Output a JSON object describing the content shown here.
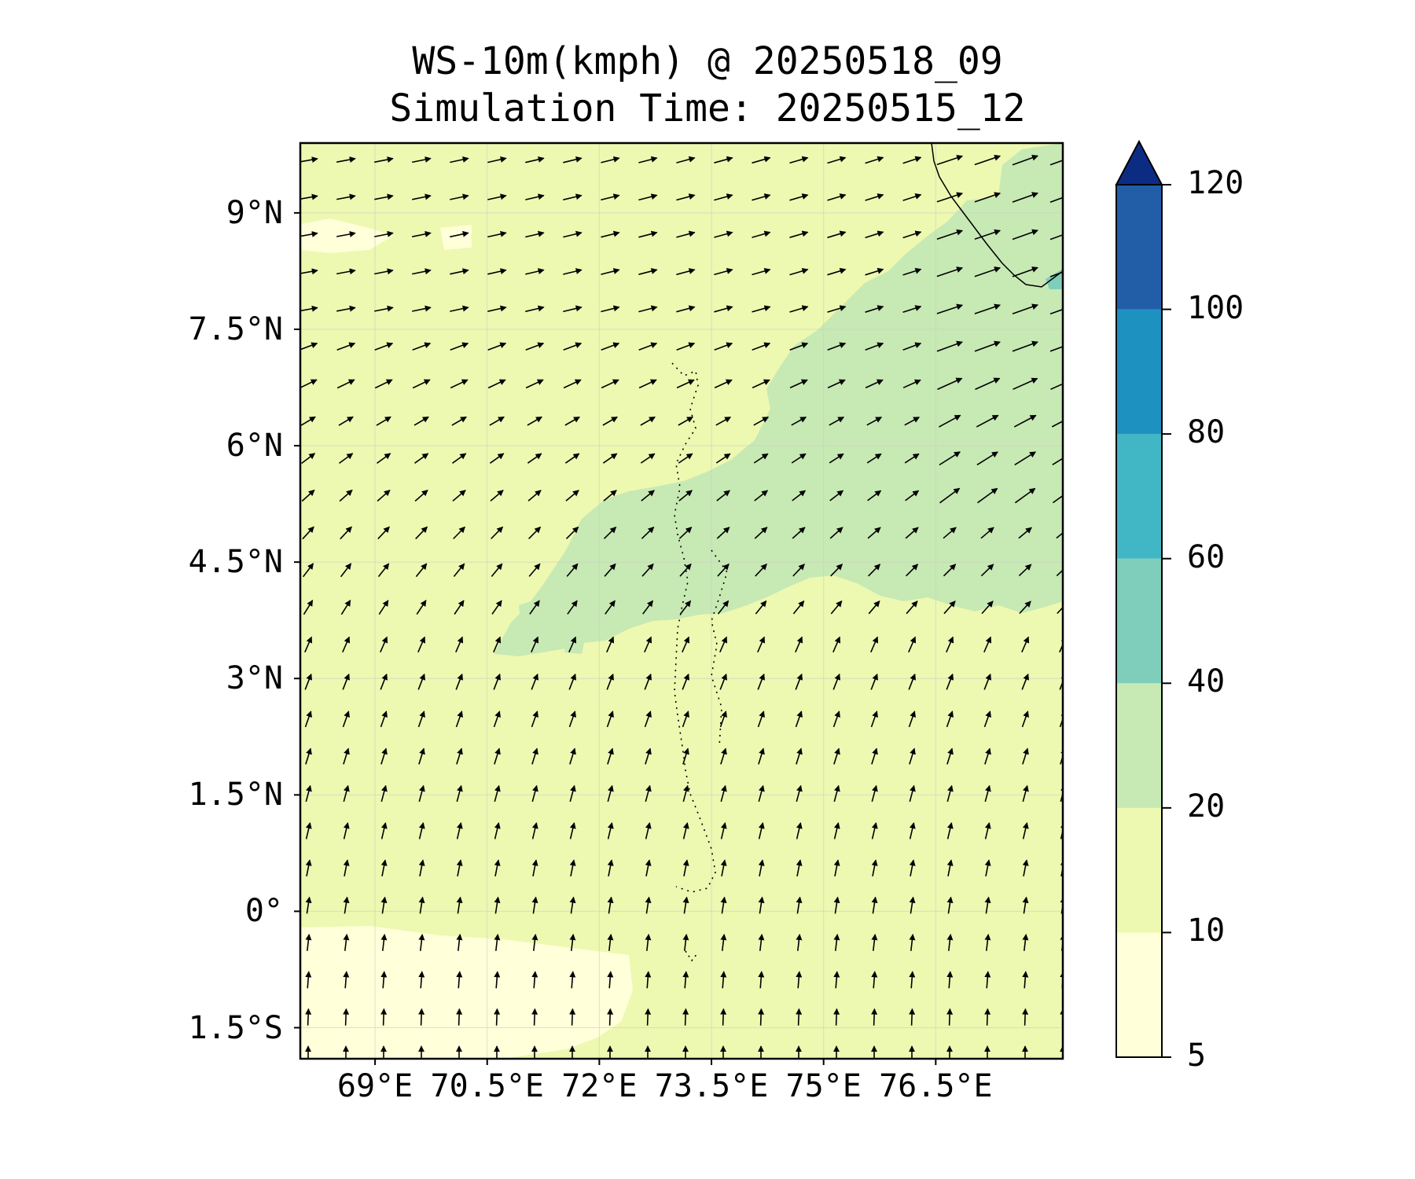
{
  "title_line1": "WS-10m(kmph) @ 20250518_09",
  "title_line2": "Simulation Time: 20250515_12",
  "lat_ticks": [
    "9°N",
    "7.5°N",
    "6°N",
    "4.5°N",
    "3°N",
    "1.5°N",
    "0°",
    "1.5°S"
  ],
  "lon_ticks": [
    "69°E",
    "70.5°E",
    "72°E",
    "73.5°E",
    "75°E",
    "76.5°E"
  ],
  "colorbar": {
    "levels": [
      "5",
      "10",
      "20",
      "40",
      "60",
      "80",
      "100",
      "120"
    ],
    "colors": [
      "#ffffd9",
      "#edf8b1",
      "#c7e9b4",
      "#7fcdbb",
      "#41b6c4",
      "#1d91c0",
      "#225ea8",
      "#0c2c84"
    ],
    "extend": "max"
  },
  "chart_data": {
    "type": "heatmap",
    "title": "WS-10m(kmph) @ 20250518_09 / Simulation Time: 20250515_12",
    "variable": "10 m wind speed (kmph) with wind vectors",
    "xlim": [
      68.0,
      78.2
    ],
    "ylim": [
      -1.9,
      9.9
    ],
    "x_ticks": [
      69,
      70.5,
      72,
      73.5,
      75,
      76.5
    ],
    "y_ticks": [
      9,
      7.5,
      6,
      4.5,
      3,
      1.5,
      0,
      -1.5
    ],
    "color_levels": [
      5,
      10,
      20,
      40,
      60,
      80,
      100,
      120
    ],
    "background_class": "10-20",
    "regions": [
      {
        "class": "20-40",
        "description": "northeast band from Maldives toward India coast"
      },
      {
        "class": "5-10",
        "description": "southwest near equator"
      },
      {
        "class": "40-60",
        "description": "small patch near 77.9E, 8N"
      }
    ],
    "grid": true,
    "wind_flow": "westerly in north, southerly in south, southwesterly in center"
  }
}
